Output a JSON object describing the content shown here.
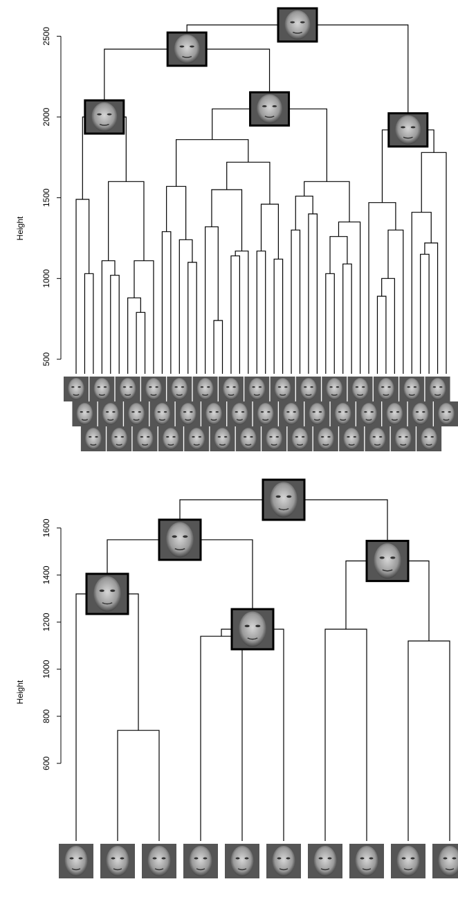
{
  "chart_data": [
    {
      "type": "dendrogram",
      "y_label": "Height",
      "ylim": [
        410,
        2600
      ],
      "yticks": [
        500,
        1000,
        1500,
        2000,
        2500
      ],
      "tree": {
        "height": 2570,
        "thumbnail": true,
        "children": [
          {
            "height": 2420,
            "thumbnail": true,
            "children": [
              {
                "height": 2000,
                "thumbnail": true,
                "children": [
                  {
                    "height": 1490,
                    "children": [
                      null,
                      {
                        "height": 1030,
                        "children": [
                          null,
                          null
                        ]
                      }
                    ]
                  },
                  {
                    "height": 1600,
                    "children": [
                      {
                        "height": 1110,
                        "children": [
                          null,
                          {
                            "height": 1020,
                            "children": [
                              null,
                              null
                            ]
                          }
                        ]
                      },
                      {
                        "height": 1110,
                        "children": [
                          {
                            "height": 880,
                            "children": [
                              null,
                              {
                                "height": 790,
                                "children": [
                                  null,
                                  null
                                ]
                              }
                            ]
                          },
                          null
                        ]
                      }
                    ]
                  }
                ]
              },
              {
                "height": 2050,
                "thumbnail": true,
                "children": [
                  {
                    "height": 1860,
                    "children": [
                      {
                        "height": 1570,
                        "children": [
                          {
                            "height": 1290,
                            "children": [
                              null,
                              null
                            ]
                          },
                          {
                            "height": 1240,
                            "children": [
                              null,
                              {
                                "height": 1100,
                                "children": [
                                  null,
                                  null
                                ]
                              }
                            ]
                          }
                        ]
                      },
                      {
                        "height": 1720,
                        "children": [
                          {
                            "height": 1550,
                            "children": [
                              {
                                "height": 1320,
                                "children": [
                                  null,
                                  {
                                    "height": 740,
                                    "children": [
                                      null,
                                      null
                                    ]
                                  }
                                ]
                              },
                              {
                                "height": 1170,
                                "children": [
                                  {
                                    "height": 1140,
                                    "children": [
                                      null,
                                      null
                                    ]
                                  },
                                  null
                                ]
                              }
                            ]
                          },
                          {
                            "height": 1460,
                            "children": [
                              {
                                "height": 1170,
                                "children": [
                                  null,
                                  null
                                ]
                              },
                              {
                                "height": 1120,
                                "children": [
                                  null,
                                  null
                                ]
                              }
                            ]
                          }
                        ]
                      }
                    ]
                  },
                  {
                    "height": 1600,
                    "children": [
                      {
                        "height": 1510,
                        "children": [
                          {
                            "height": 1300,
                            "children": [
                              null,
                              null
                            ]
                          },
                          {
                            "height": 1400,
                            "children": [
                              null,
                              null
                            ]
                          }
                        ]
                      },
                      {
                        "height": 1350,
                        "children": [
                          {
                            "height": 1260,
                            "children": [
                              {
                                "height": 1030,
                                "children": [
                                  null,
                                  null
                                ]
                              },
                              {
                                "height": 1090,
                                "children": [
                                  null,
                                  null
                                ]
                              }
                            ]
                          },
                          null
                        ]
                      }
                    ]
                  }
                ]
              }
            ]
          },
          {
            "height": 1920,
            "thumbnail": true,
            "children": [
              {
                "height": 1470,
                "children": [
                  null,
                  {
                    "height": 1300,
                    "children": [
                      {
                        "height": 1000,
                        "children": [
                          {
                            "height": 890,
                            "children": [
                              null,
                              null
                            ]
                          },
                          null
                        ]
                      },
                      null
                    ]
                  }
                ]
              },
              {
                "height": 1780,
                "children": [
                  {
                    "height": 1410,
                    "children": [
                      null,
                      {
                        "height": 1220,
                        "children": [
                          {
                            "height": 1150,
                            "children": [
                              null,
                              null
                            ]
                          },
                          null
                        ]
                      }
                    ]
                  },
                  null
                ]
              }
            ]
          }
        ]
      }
    },
    {
      "type": "dendrogram",
      "y_label": "Height",
      "ylim": [
        270,
        1820
      ],
      "yticks": [
        600,
        800,
        1000,
        1200,
        1400,
        1600
      ],
      "tree": {
        "height": 1720,
        "thumbnail": true,
        "children": [
          {
            "height": 1550,
            "thumbnail": true,
            "children": [
              {
                "height": 1320,
                "thumbnail": true,
                "children": [
                  null,
                  {
                    "height": 740,
                    "children": [
                      null,
                      null
                    ]
                  }
                ]
              },
              {
                "height": 1170,
                "thumbnail": true,
                "children": [
                  {
                    "height": 1140,
                    "children": [
                      null,
                      null
                    ]
                  },
                  null
                ]
              }
            ]
          },
          {
            "height": 1460,
            "thumbnail": true,
            "children": [
              {
                "height": 1170,
                "children": [
                  null,
                  null
                ]
              },
              {
                "height": 1120,
                "children": [
                  null,
                  null
                ]
              }
            ]
          }
        ]
      }
    }
  ]
}
